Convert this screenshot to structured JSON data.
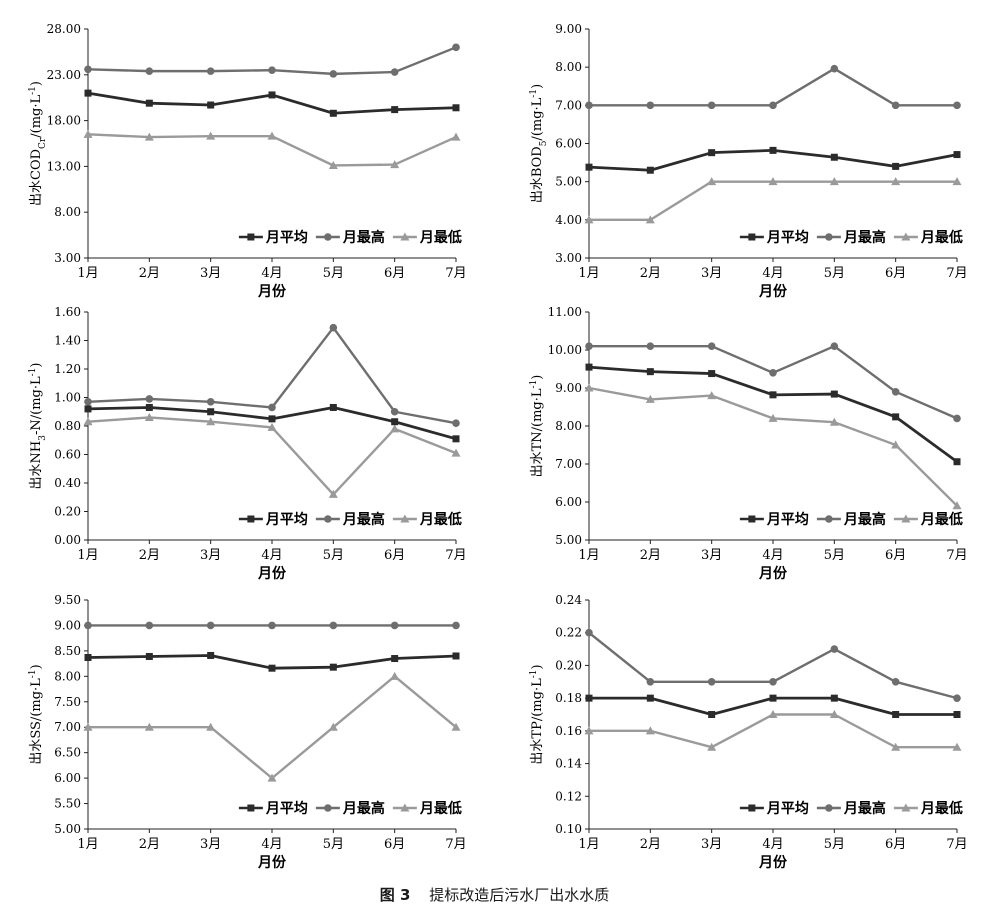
{
  "figure": {
    "number_label": "图 3",
    "caption": "提标改造后污水厂出水水质"
  },
  "style": {
    "avg_color": "#2b2b2b",
    "max_color": "#6e6e6e",
    "min_color": "#9a9a9a",
    "axis_color": "#222222"
  },
  "chart_data": [
    {
      "type": "line",
      "title": "",
      "ylabel_main": "出水COD",
      "ylabel_sub": "Cr",
      "ylabel_unit": "/(mg·L",
      "ylabel_sup": "-1",
      "ylabel_tail": ")",
      "xlabel": "月份",
      "categories": [
        "1月",
        "2月",
        "3月",
        "4月",
        "5月",
        "6月",
        "7月"
      ],
      "ylim": [
        3.0,
        28.0
      ],
      "yticks": [
        "3.00",
        "8.00",
        "13.00",
        "18.00",
        "23.00",
        "28.00"
      ],
      "legend_position": "bottom-right",
      "series": [
        {
          "name": "月平均",
          "marker": "square",
          "values": [
            21.0,
            19.9,
            19.7,
            20.8,
            18.8,
            19.2,
            19.4
          ]
        },
        {
          "name": "月最高",
          "marker": "circle",
          "values": [
            23.6,
            23.4,
            23.4,
            23.5,
            23.1,
            23.3,
            26.0
          ]
        },
        {
          "name": "月最低",
          "marker": "triangle",
          "values": [
            16.5,
            16.2,
            16.3,
            16.3,
            13.1,
            13.2,
            16.2
          ]
        }
      ]
    },
    {
      "type": "line",
      "title": "",
      "ylabel_main": "出水BOD",
      "ylabel_sub": "5",
      "ylabel_unit": "/(mg·L",
      "ylabel_sup": "-1",
      "ylabel_tail": ")",
      "xlabel": "月份",
      "categories": [
        "1月",
        "2月",
        "3月",
        "4月",
        "5月",
        "6月",
        "7月"
      ],
      "ylim": [
        3.0,
        9.0
      ],
      "yticks": [
        "3.00",
        "4.00",
        "5.00",
        "6.00",
        "7.00",
        "8.00",
        "9.00"
      ],
      "legend_position": "bottom-right",
      "series": [
        {
          "name": "月平均",
          "marker": "square",
          "values": [
            5.38,
            5.3,
            5.76,
            5.82,
            5.64,
            5.4,
            5.71
          ]
        },
        {
          "name": "月最高",
          "marker": "circle",
          "values": [
            7.0,
            7.0,
            7.0,
            7.0,
            7.96,
            7.0,
            7.0
          ]
        },
        {
          "name": "月最低",
          "marker": "triangle",
          "values": [
            4.0,
            4.0,
            5.0,
            5.0,
            5.0,
            5.0,
            5.0
          ]
        }
      ]
    },
    {
      "type": "line",
      "title": "",
      "ylabel_main": "出水NH",
      "ylabel_sub": "3",
      "ylabel_unit": "-N/(mg·L",
      "ylabel_sup": "-1",
      "ylabel_tail": ")",
      "xlabel": "月份",
      "categories": [
        "1月",
        "2月",
        "3月",
        "4月",
        "5月",
        "6月",
        "7月"
      ],
      "ylim": [
        0.0,
        1.6
      ],
      "yticks": [
        "0.00",
        "0.20",
        "0.40",
        "0.60",
        "0.80",
        "1.00",
        "1.20",
        "1.40",
        "1.60"
      ],
      "legend_position": "bottom-right",
      "series": [
        {
          "name": "月平均",
          "marker": "square",
          "values": [
            0.92,
            0.93,
            0.9,
            0.85,
            0.93,
            0.83,
            0.71
          ]
        },
        {
          "name": "月最高",
          "marker": "circle",
          "values": [
            0.97,
            0.99,
            0.97,
            0.93,
            1.49,
            0.9,
            0.82
          ]
        },
        {
          "name": "月最低",
          "marker": "triangle",
          "values": [
            0.83,
            0.86,
            0.83,
            0.79,
            0.32,
            0.78,
            0.61
          ]
        }
      ]
    },
    {
      "type": "line",
      "title": "",
      "ylabel_main": "出水TN",
      "ylabel_sub": "",
      "ylabel_unit": "/(mg·L",
      "ylabel_sup": "-1",
      "ylabel_tail": ")",
      "xlabel": "月份",
      "categories": [
        "1月",
        "2月",
        "3月",
        "4月",
        "5月",
        "6月",
        "7月"
      ],
      "ylim": [
        5.0,
        11.0
      ],
      "yticks": [
        "5.00",
        "6.00",
        "7.00",
        "8.00",
        "9.00",
        "10.00",
        "11.00"
      ],
      "legend_position": "bottom-right",
      "series": [
        {
          "name": "月平均",
          "marker": "square",
          "values": [
            9.55,
            9.43,
            9.38,
            8.82,
            8.84,
            8.24,
            7.06
          ]
        },
        {
          "name": "月最高",
          "marker": "circle",
          "values": [
            10.1,
            10.1,
            10.1,
            9.4,
            10.1,
            8.9,
            8.2
          ]
        },
        {
          "name": "月最低",
          "marker": "triangle",
          "values": [
            9.0,
            8.7,
            8.8,
            8.2,
            8.1,
            7.5,
            5.9
          ]
        }
      ]
    },
    {
      "type": "line",
      "title": "",
      "ylabel_main": "出水SS",
      "ylabel_sub": "",
      "ylabel_unit": "/(mg·L",
      "ylabel_sup": "-1",
      "ylabel_tail": ")",
      "xlabel": "月份",
      "categories": [
        "1月",
        "2月",
        "3月",
        "4月",
        "5月",
        "6月",
        "7月"
      ],
      "ylim": [
        5.0,
        9.5
      ],
      "yticks": [
        "5.00",
        "5.50",
        "6.00",
        "6.50",
        "7.00",
        "7.50",
        "8.00",
        "8.50",
        "9.00",
        "9.50"
      ],
      "legend_position": "bottom-right",
      "series": [
        {
          "name": "月平均",
          "marker": "square",
          "values": [
            8.37,
            8.39,
            8.41,
            8.16,
            8.18,
            8.35,
            8.4
          ]
        },
        {
          "name": "月最高",
          "marker": "circle",
          "values": [
            9.0,
            9.0,
            9.0,
            9.0,
            9.0,
            9.0,
            9.0
          ]
        },
        {
          "name": "月最低",
          "marker": "triangle",
          "values": [
            7.0,
            7.0,
            7.0,
            6.0,
            7.0,
            8.0,
            7.0
          ]
        }
      ]
    },
    {
      "type": "line",
      "title": "",
      "ylabel_main": "出水TP",
      "ylabel_sub": "",
      "ylabel_unit": "/(mg·L",
      "ylabel_sup": "-1",
      "ylabel_tail": ")",
      "xlabel": "月份",
      "categories": [
        "1月",
        "2月",
        "3月",
        "4月",
        "5月",
        "6月",
        "7月"
      ],
      "ylim": [
        0.1,
        0.24
      ],
      "yticks": [
        "0.10",
        "0.12",
        "0.14",
        "0.16",
        "0.18",
        "0.20",
        "0.22",
        "0.24"
      ],
      "legend_position": "bottom-right",
      "series": [
        {
          "name": "月平均",
          "marker": "square",
          "values": [
            0.18,
            0.18,
            0.17,
            0.18,
            0.18,
            0.17,
            0.17
          ]
        },
        {
          "name": "月最高",
          "marker": "circle",
          "values": [
            0.22,
            0.19,
            0.19,
            0.19,
            0.21,
            0.19,
            0.18
          ]
        },
        {
          "name": "月最低",
          "marker": "triangle",
          "values": [
            0.16,
            0.16,
            0.15,
            0.17,
            0.17,
            0.15,
            0.15
          ]
        }
      ]
    }
  ]
}
